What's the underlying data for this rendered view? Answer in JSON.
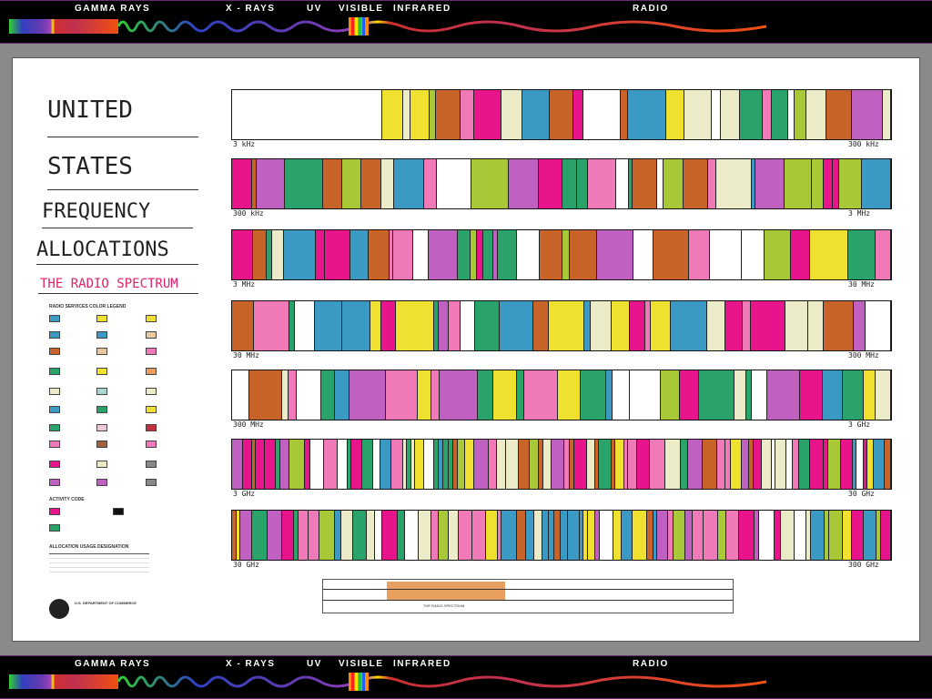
{
  "spectrum_bands": [
    "GAMMA RAYS",
    "X - RAYS",
    "UV",
    "VISIBLE",
    "INFRARED",
    "RADIO"
  ],
  "poster": {
    "title_lines": [
      "UNITED",
      "STATES",
      "FREQUENCY",
      "ALLOCATIONS"
    ],
    "subtitle": "THE RADIO SPECTRUM",
    "legend_title": "RADIO SERVICES COLOR LEGEND",
    "activity_code": "ACTIVITY CODE",
    "allocation_usage": "ALLOCATION USAGE DESIGNATION",
    "department": "U.S. DEPARTMENT OF COMMERCE",
    "scale_label": "THE RADIO SPECTRUM",
    "row_labels": [
      {
        "left": "3 kHz",
        "right": "300 kHz"
      },
      {
        "left": "300 kHz",
        "right": "3 MHz"
      },
      {
        "left": "3 MHz",
        "right": "30 MHz"
      },
      {
        "left": "30 MHz",
        "right": "300 MHz"
      },
      {
        "left": "300 MHz",
        "right": "3 GHz"
      },
      {
        "left": "3 GHz",
        "right": "30 GHz"
      },
      {
        "left": "30 GHz",
        "right": "300 GHz"
      }
    ]
  },
  "colors": {
    "magenta": "#e8148c",
    "steel": "#3a9ac4",
    "cream": "#ecebc8",
    "green": "#2aa36a",
    "orange": "#c8642a",
    "yellow": "#f0e030",
    "violet": "#c060c0",
    "pink": "#f07ab8",
    "olive": "#a8c838"
  }
}
